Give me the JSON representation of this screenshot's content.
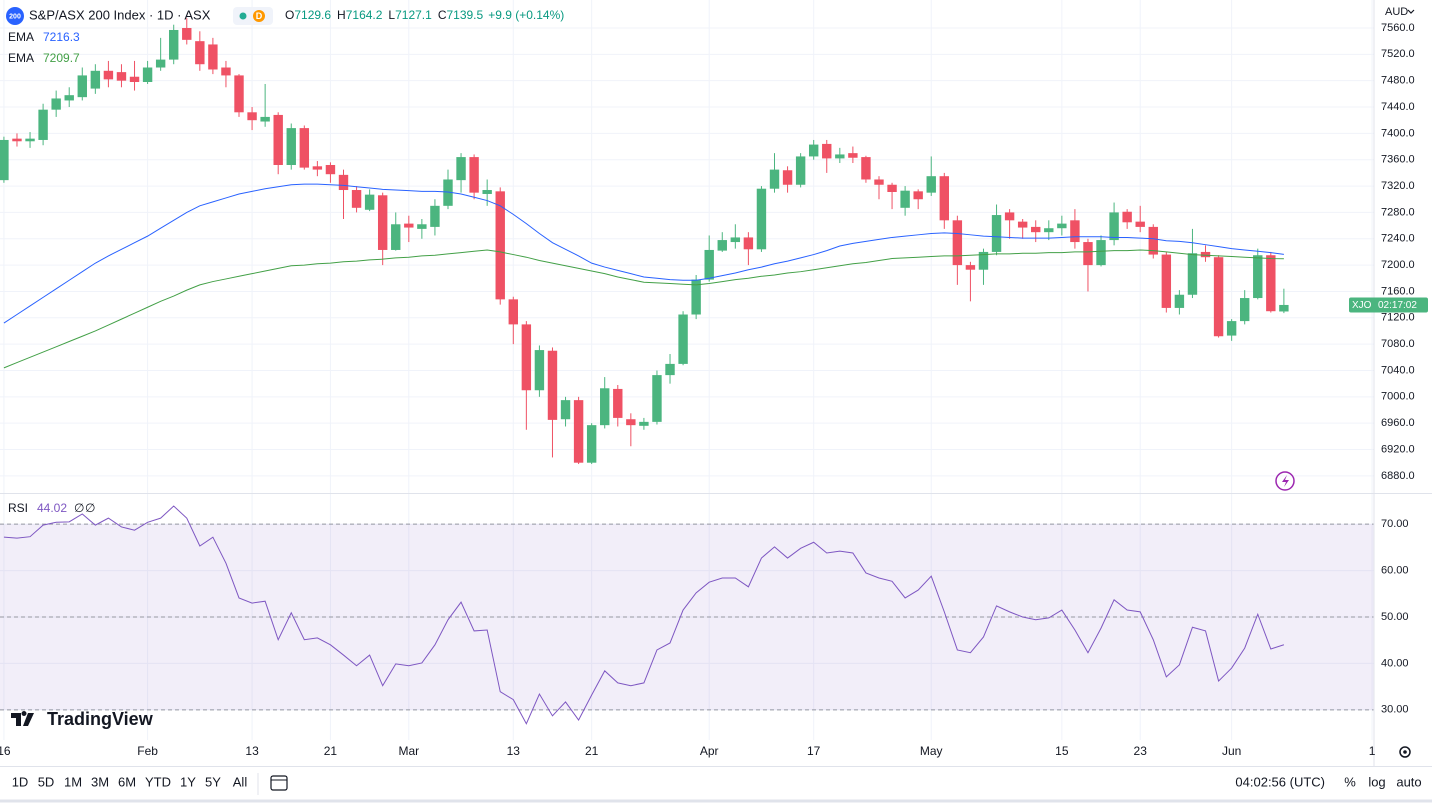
{
  "chart_data": [
    {
      "type": "candlestick",
      "icon_label": "200",
      "title": "S&P/ASX 200 Index · 1D · ASX",
      "interval_badge": "D",
      "ohlc_labels": [
        "O",
        "H",
        "L",
        "C"
      ],
      "change": "+9.9 (+0.14%)",
      "currency": "AUD",
      "symbol": "XJO",
      "countdown": "02:17:02",
      "up_color": "#4bb57f",
      "down_color": "#ef5164",
      "grid": true,
      "xlim": [
        -0.3,
        104.9
      ],
      "xticks": [
        {
          "value": 0,
          "label": "16"
        },
        {
          "value": 11,
          "label": "Feb"
        },
        {
          "value": 19,
          "label": "13"
        },
        {
          "value": 25,
          "label": "21"
        },
        {
          "value": 31,
          "label": "Mar"
        },
        {
          "value": 39,
          "label": "13"
        },
        {
          "value": 45,
          "label": "21"
        },
        {
          "value": 54,
          "label": "Apr"
        },
        {
          "value": 62,
          "label": "17"
        },
        {
          "value": 71,
          "label": "May"
        },
        {
          "value": 81,
          "label": "15"
        },
        {
          "value": 87,
          "label": "23"
        },
        {
          "value": 94,
          "label": "Jun"
        },
        {
          "value": 104.75,
          "label": "1"
        }
      ],
      "ylim": [
        6854,
        7602.5
      ],
      "yticks": [
        {
          "value": 6880,
          "label": "6880.0"
        },
        {
          "value": 6920,
          "label": "6920.0"
        },
        {
          "value": 6960,
          "label": "6960.0"
        },
        {
          "value": 7000,
          "label": "7000.0"
        },
        {
          "value": 7040,
          "label": "7040.0"
        },
        {
          "value": 7080,
          "label": "7080.0"
        },
        {
          "value": 7120,
          "label": "7120.0"
        },
        {
          "value": 7160,
          "label": "7160.0"
        },
        {
          "value": 7200,
          "label": "7200.0"
        },
        {
          "value": 7240,
          "label": "7240.0"
        },
        {
          "value": 7280,
          "label": "7280.0"
        },
        {
          "value": 7320,
          "label": "7320.0"
        },
        {
          "value": 7360,
          "label": "7360.0"
        },
        {
          "value": 7400,
          "label": "7400.0"
        },
        {
          "value": 7440,
          "label": "7440.0"
        },
        {
          "value": 7480,
          "label": "7480.0"
        },
        {
          "value": 7520,
          "label": "7520.0"
        },
        {
          "value": 7560,
          "label": "7560.0"
        }
      ],
      "open": [
        7329,
        7392,
        7388,
        7390,
        7436,
        7450,
        7455,
        7468,
        7495,
        7493,
        7486,
        7478,
        7500,
        7512,
        7560,
        7540,
        7535,
        7500,
        7488,
        7432,
        7418,
        7428,
        7352,
        7408,
        7350,
        7352,
        7337,
        7314,
        7284,
        7306,
        7223,
        7263,
        7255,
        7258,
        7290,
        7329,
        7364,
        7308,
        7312,
        7148,
        7110,
        7010,
        7070,
        6966,
        6995,
        6900,
        6957,
        7012,
        6966,
        6956,
        6962,
        7033,
        7050,
        7125,
        7178,
        7222,
        7235,
        7242,
        7224,
        7316,
        7344,
        7322,
        7365,
        7384,
        7362,
        7370,
        7364,
        7330,
        7322,
        7287,
        7312,
        7310,
        7335,
        7268,
        7200,
        7193,
        7220,
        7280,
        7266,
        7258,
        7250,
        7256,
        7268,
        7235,
        7200,
        7238,
        7281,
        7266,
        7258,
        7216,
        7135,
        7155,
        7220,
        7212,
        7093,
        7115,
        7150,
        7215,
        7129.6
      ],
      "high": [
        7395,
        7400,
        7402,
        7445,
        7465,
        7470,
        7500,
        7505,
        7510,
        7505,
        7510,
        7510,
        7545,
        7565,
        7575,
        7555,
        7545,
        7510,
        7490,
        7440,
        7475,
        7432,
        7415,
        7412,
        7358,
        7356,
        7345,
        7320,
        7315,
        7310,
        7280,
        7275,
        7270,
        7300,
        7345,
        7370,
        7368,
        7330,
        7318,
        7152,
        7115,
        7078,
        7075,
        7000,
        7000,
        6960,
        7030,
        7018,
        6975,
        6968,
        7040,
        7065,
        7130,
        7185,
        7245,
        7250,
        7262,
        7250,
        7320,
        7370,
        7350,
        7370,
        7390,
        7390,
        7378,
        7380,
        7366,
        7335,
        7325,
        7320,
        7315,
        7365,
        7340,
        7275,
        7205,
        7225,
        7292,
        7285,
        7270,
        7268,
        7268,
        7275,
        7285,
        7240,
        7245,
        7295,
        7285,
        7290,
        7262,
        7220,
        7162,
        7255,
        7230,
        7215,
        7118,
        7162,
        7225,
        7220,
        7164.2
      ],
      "low": [
        7325,
        7380,
        7378,
        7382,
        7425,
        7440,
        7450,
        7460,
        7470,
        7470,
        7465,
        7475,
        7495,
        7505,
        7535,
        7495,
        7490,
        7470,
        7425,
        7405,
        7410,
        7338,
        7345,
        7345,
        7335,
        7325,
        7270,
        7280,
        7282,
        7200,
        7222,
        7235,
        7240,
        7245,
        7285,
        7310,
        7300,
        7290,
        7140,
        7080,
        6950,
        7000,
        6908,
        6955,
        6898,
        6898,
        6952,
        6955,
        6925,
        6950,
        6958,
        7020,
        7048,
        7118,
        7175,
        7220,
        7225,
        7200,
        7220,
        7310,
        7310,
        7318,
        7360,
        7340,
        7355,
        7355,
        7325,
        7300,
        7285,
        7275,
        7285,
        7305,
        7255,
        7170,
        7145,
        7170,
        7215,
        7240,
        7240,
        7235,
        7238,
        7245,
        7225,
        7160,
        7198,
        7230,
        7255,
        7250,
        7210,
        7128,
        7125,
        7150,
        7205,
        7090,
        7085,
        7110,
        7148,
        7128,
        7127.1
      ],
      "close": [
        7390,
        7388,
        7392,
        7436,
        7453,
        7458,
        7488,
        7495,
        7482,
        7480,
        7478,
        7500,
        7512,
        7557,
        7542,
        7505,
        7497,
        7488,
        7432,
        7420,
        7425,
        7352,
        7408,
        7348,
        7345,
        7338,
        7314,
        7287,
        7307,
        7223,
        7262,
        7257,
        7262,
        7290,
        7330,
        7364,
        7310,
        7314,
        7148,
        7110,
        7010,
        7071,
        6965,
        6995,
        6900,
        6957,
        7013,
        6968,
        6957,
        6962,
        7033,
        7050,
        7125,
        7178,
        7223,
        7238,
        7242,
        7224,
        7316,
        7345,
        7322,
        7365,
        7383,
        7362,
        7368,
        7363,
        7330,
        7322,
        7311,
        7313,
        7300,
        7335,
        7268,
        7200,
        7193,
        7220,
        7276,
        7268,
        7257,
        7250,
        7256,
        7263,
        7235,
        7200,
        7238,
        7280,
        7265,
        7258,
        7216,
        7135,
        7155,
        7218,
        7212,
        7092,
        7115,
        7150,
        7215,
        7130,
        7139.5
      ],
      "series": [
        {
          "name": "EMA",
          "color": "#2962ff",
          "values": [
            7112,
            7125,
            7138,
            7151,
            7164,
            7177,
            7190,
            7203,
            7214,
            7224,
            7234,
            7244,
            7256,
            7268,
            7280,
            7290,
            7296,
            7302,
            7308,
            7312,
            7316,
            7319,
            7322,
            7323,
            7323,
            7322,
            7321,
            7319,
            7317,
            7315,
            7314,
            7313,
            7312,
            7312,
            7311,
            7308,
            7303,
            7298,
            7290,
            7277,
            7263,
            7248,
            7234,
            7224,
            7214,
            7203,
            7197,
            7192,
            7187,
            7182,
            7180,
            7178,
            7177,
            7177,
            7180,
            7184,
            7188,
            7193,
            7197,
            7202,
            7206,
            7211,
            7216,
            7222,
            7229,
            7233,
            7236,
            7239,
            7242,
            7244,
            7246,
            7248,
            7249,
            7248,
            7246,
            7244,
            7243,
            7242,
            7241,
            7241,
            7241,
            7242,
            7243,
            7243,
            7243,
            7242,
            7242,
            7241,
            7240,
            7237,
            7236,
            7234,
            7231,
            7228,
            7225,
            7223,
            7221,
            7219,
            7216.3
          ]
        },
        {
          "name": "EMA",
          "color": "#43a047",
          "values": [
            7044,
            7052,
            7060,
            7068,
            7076,
            7084,
            7092,
            7100,
            7109,
            7118,
            7127,
            7136,
            7145,
            7153,
            7162,
            7170,
            7175,
            7179,
            7183,
            7187,
            7191,
            7195,
            7199,
            7200,
            7202,
            7203,
            7205,
            7206,
            7208,
            7209,
            7211,
            7212,
            7214,
            7215,
            7217,
            7219,
            7221,
            7223,
            7220,
            7216,
            7212,
            7207,
            7203,
            7199,
            7195,
            7191,
            7187,
            7182,
            7178,
            7174,
            7173,
            7172,
            7171,
            7170,
            7172,
            7175,
            7178,
            7180,
            7183,
            7185,
            7188,
            7190,
            7193,
            7196,
            7199,
            7202,
            7204,
            7207,
            7210,
            7211,
            7212,
            7213,
            7214,
            7214,
            7215,
            7216,
            7217,
            7217,
            7218,
            7218,
            7219,
            7219,
            7220,
            7220,
            7221,
            7222,
            7222,
            7223,
            7222,
            7220,
            7218,
            7216,
            7215,
            7214,
            7213,
            7212,
            7211,
            7210,
            7209.7
          ]
        }
      ]
    },
    {
      "type": "line",
      "na_labels": [
        "∅",
        "∅"
      ],
      "band": [
        30,
        70
      ],
      "hlines": [
        30,
        50,
        70
      ],
      "band_color": "#7e57c2",
      "ylim": [
        23.5,
        76.5
      ],
      "yticks": [
        {
          "value": 30,
          "label": "30.00"
        },
        {
          "value": 40,
          "label": "40.00"
        },
        {
          "value": 50,
          "label": "50.00"
        },
        {
          "value": 60,
          "label": "60.00"
        },
        {
          "value": 70,
          "label": "70.00"
        }
      ],
      "series": [
        {
          "name": "RSI",
          "color": "#7e57c2",
          "values": [
            67.2,
            67.0,
            67.3,
            69.8,
            70.4,
            70.5,
            72.2,
            69.8,
            71.3,
            69.4,
            68.7,
            70.4,
            71.3,
            73.9,
            71.3,
            65.3,
            67.2,
            61.6,
            54.1,
            53.0,
            53.4,
            45.1,
            50.9,
            45.1,
            45.5,
            44.0,
            41.8,
            39.5,
            41.8,
            35.2,
            39.9,
            39.5,
            40.1,
            44.0,
            49.4,
            53.2,
            47.0,
            47.2,
            33.9,
            32.2,
            27.0,
            33.4,
            28.7,
            31.7,
            27.8,
            33.2,
            38.4,
            35.8,
            35.2,
            35.8,
            42.9,
            44.4,
            51.5,
            55.2,
            57.5,
            58.4,
            58.4,
            56.5,
            62.7,
            65.1,
            62.7,
            64.8,
            66.1,
            63.8,
            64.2,
            63.8,
            59.5,
            58.4,
            57.7,
            54.1,
            55.8,
            58.8,
            51.1,
            42.9,
            42.3,
            45.7,
            52.4,
            51.1,
            50.0,
            49.4,
            49.8,
            51.5,
            47.2,
            42.3,
            47.6,
            53.7,
            51.5,
            51.1,
            45.1,
            37.1,
            39.7,
            47.8,
            47.0,
            36.2,
            39.0,
            43.3,
            50.6,
            43.1,
            44.02
          ]
        }
      ]
    }
  ],
  "toolbar": {
    "ranges": [
      "1D",
      "5D",
      "1M",
      "3M",
      "6M",
      "YTD",
      "1Y",
      "5Y",
      "All"
    ],
    "time": "04:02:56 (UTC)",
    "options": [
      "%",
      "log",
      "auto"
    ]
  },
  "logo": "TradingView"
}
